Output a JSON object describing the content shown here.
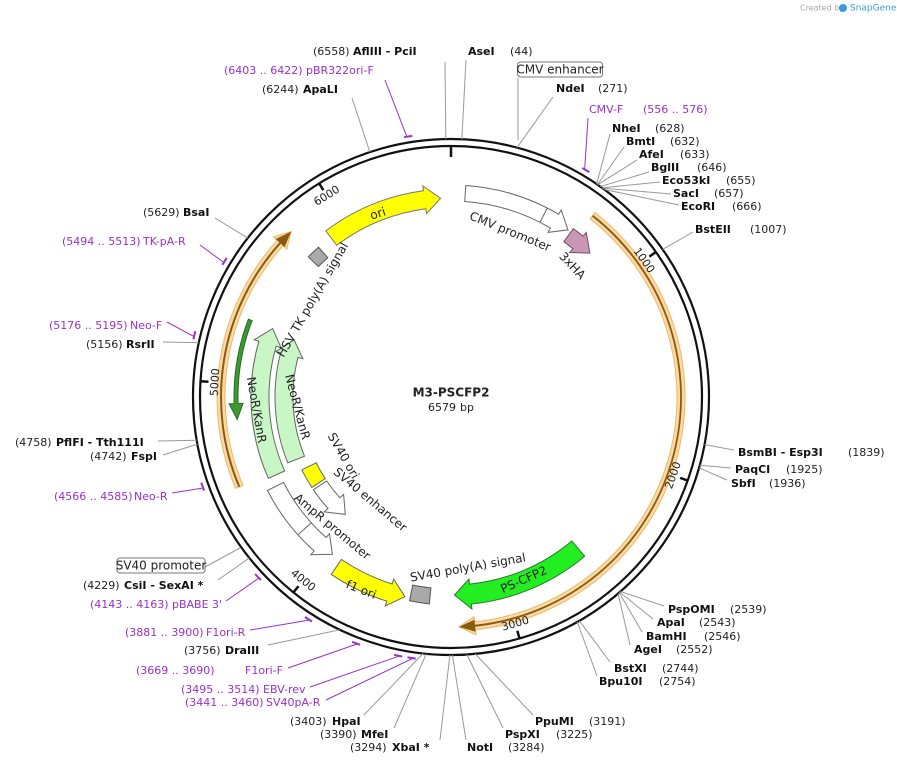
{
  "header": {
    "created_by": "Created by",
    "brand": "SnapGene"
  },
  "map": {
    "name": "M3-PSCFP2",
    "length": 6579,
    "unit": "bp",
    "ruler": [
      1000,
      2000,
      3000,
      4000,
      5000,
      6000
    ]
  },
  "features": [
    {
      "label": "CMV enhancer"
    },
    {
      "label": "CMV promoter"
    },
    {
      "label": "3xHA"
    },
    {
      "label": "ori"
    },
    {
      "label": "HSV TK poly(A) signal"
    },
    {
      "label": "NeoR/KanR"
    },
    {
      "label": "NeoR/KanR"
    },
    {
      "label": "SV40 ori"
    },
    {
      "label": "SV40 enhancer"
    },
    {
      "label": "AmpR promoter"
    },
    {
      "label": "SV40 promoter"
    },
    {
      "label": "f1 ori"
    },
    {
      "label": "SV40 poly(A) signal"
    },
    {
      "label": "PS-CFP2"
    }
  ],
  "sites": [
    {
      "name": "AflIII - PciI",
      "position": "(6558)"
    },
    {
      "name": "AseI",
      "position": "(44)"
    },
    {
      "name": "ApaLI",
      "position": "(6244)"
    },
    {
      "name": "NdeI",
      "position": "(271)"
    },
    {
      "name": "NheI",
      "position": "(628)"
    },
    {
      "name": "BmtI",
      "position": "(632)"
    },
    {
      "name": "AfeI",
      "position": "(633)"
    },
    {
      "name": "BglII",
      "position": "(646)"
    },
    {
      "name": "Eco53kI",
      "position": "(655)"
    },
    {
      "name": "SacI",
      "position": "(657)"
    },
    {
      "name": "EcoRI",
      "position": "(666)"
    },
    {
      "name": "BstEII",
      "position": "(1007)"
    },
    {
      "name": "BsmBI - Esp3I",
      "position": "(1839)"
    },
    {
      "name": "PaqCI",
      "position": "(1925)"
    },
    {
      "name": "SbfI",
      "position": "(1936)"
    },
    {
      "name": "PspOMI",
      "position": "(2539)"
    },
    {
      "name": "ApaI",
      "position": "(2543)"
    },
    {
      "name": "BamHI",
      "position": "(2546)"
    },
    {
      "name": "AgeI",
      "position": "(2552)"
    },
    {
      "name": "BstXI",
      "position": "(2744)"
    },
    {
      "name": "Bpu10I",
      "position": "(2754)"
    },
    {
      "name": "PpuMI",
      "position": "(3191)"
    },
    {
      "name": "PspXI",
      "position": "(3225)"
    },
    {
      "name": "NotI",
      "position": "(3284)"
    },
    {
      "name": "XbaI *",
      "position": "(3294)"
    },
    {
      "name": "MfeI",
      "position": "(3390)"
    },
    {
      "name": "HpaI",
      "position": "(3403)"
    },
    {
      "name": "DraIII",
      "position": "(3756)"
    },
    {
      "name": "CsiI - SexAI *",
      "position": "(4229)"
    },
    {
      "name": "FspI",
      "position": "(4742)"
    },
    {
      "name": "PflFI - Tth111I",
      "position": "(4758)"
    },
    {
      "name": "RsrII",
      "position": "(5156)"
    },
    {
      "name": "BsaI",
      "position": "(5629)"
    }
  ],
  "primers": [
    {
      "name": "pBR322ori-F",
      "range": "(6403 .. 6422)"
    },
    {
      "name": "CMV-F",
      "range": "(556 .. 576)"
    },
    {
      "name": "TK-pA-R",
      "range": "(5494 .. 5513)"
    },
    {
      "name": "Neo-F",
      "range": "(5176 .. 5195)"
    },
    {
      "name": "Neo-R",
      "range": "(4566 .. 4585)"
    },
    {
      "name": "pBABE 3'",
      "range": "(4143 .. 4163)"
    },
    {
      "name": "F1ori-R",
      "range": "(3881 .. 3900)"
    },
    {
      "name": "F1ori-F",
      "range": "(3669 .. 3690)"
    },
    {
      "name": "EBV-rev",
      "range": "(3495 .. 3514)"
    },
    {
      "name": "SV40pA-R",
      "range": "(3441 .. 3460)"
    }
  ]
}
